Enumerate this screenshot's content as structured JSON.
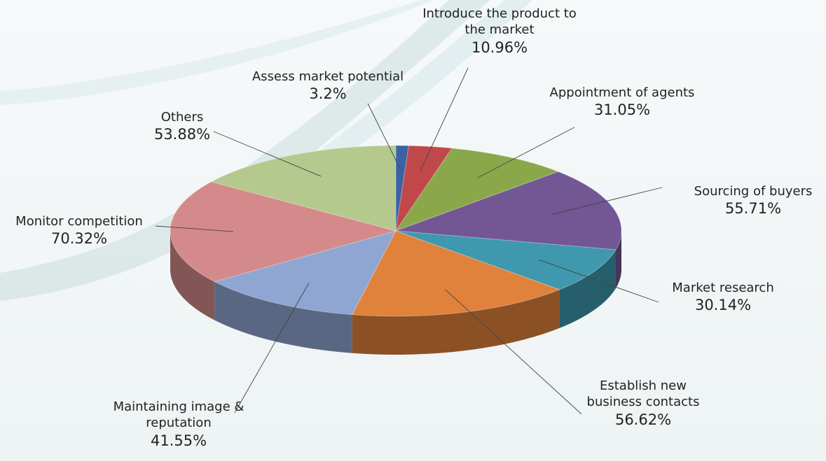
{
  "chart_data": {
    "type": "pie",
    "three_d": true,
    "categories": [
      "Assess market potential",
      "Introduce the product to the market",
      "Appointment of agents",
      "Sourcing of buyers",
      "Market research",
      "Establish new business contacts",
      "Maintaining image & reputation",
      "Monitor competition",
      "Others"
    ],
    "values": [
      3.2,
      10.96,
      31.05,
      55.71,
      30.14,
      56.62,
      41.55,
      70.32,
      53.88
    ],
    "value_labels": [
      "3.2%",
      "10.96%",
      "31.05%",
      "55.71%",
      "30.14%",
      "56.62%",
      "41.55%",
      "70.32%",
      "53.88%"
    ],
    "colors": [
      "#3a62a4",
      "#c0484a",
      "#8aa84a",
      "#735694",
      "#3f98ae",
      "#e0823c",
      "#8fa6d2",
      "#d48a8a",
      "#b5c98e"
    ]
  }
}
